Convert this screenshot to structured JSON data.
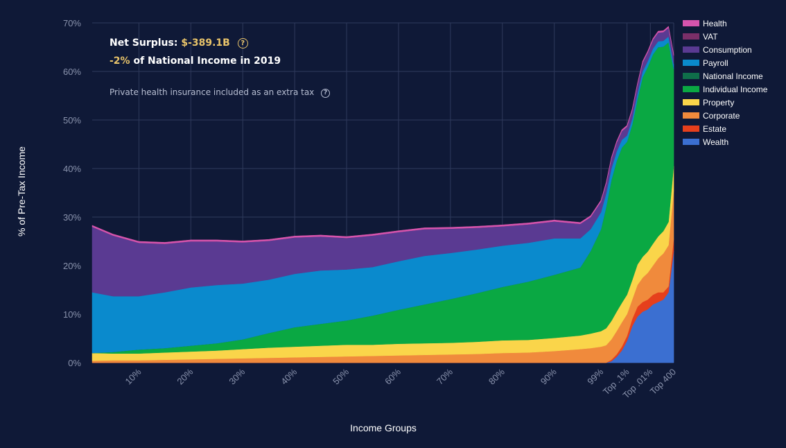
{
  "summary": {
    "surplus_label": "Net Surplus:",
    "surplus_value": "$-389.1B",
    "pct_value": "-2%",
    "pct_suffix": "of National Income in 2019",
    "note": "Private health insurance included as an extra tax",
    "help_glyph": "?"
  },
  "chart_data": {
    "type": "area",
    "stacked": true,
    "xlabel": "Income Groups",
    "ylabel": "% of Pre-Tax Income",
    "ylim": [
      0,
      70
    ],
    "y_ticks": [
      "0%",
      "10%",
      "20%",
      "30%",
      "40%",
      "50%",
      "60%",
      "70%"
    ],
    "x_ticks": [
      "10%",
      "20%",
      "30%",
      "40%",
      "50%",
      "60%",
      "70%",
      "80%",
      "90%",
      "99%",
      "Top .1%",
      "Top .01%",
      "Top 400"
    ],
    "x_tick_positions": [
      10,
      20,
      30,
      40,
      50,
      60,
      70,
      80,
      90,
      99,
      104,
      108.5,
      113
    ],
    "x_domain": [
      1,
      113
    ],
    "x": [
      1,
      5,
      10,
      15,
      20,
      25,
      30,
      35,
      40,
      45,
      50,
      55,
      60,
      65,
      70,
      75,
      80,
      85,
      90,
      95,
      97,
      99,
      100,
      101,
      102,
      103,
      104,
      105,
      106,
      107,
      108,
      109,
      110,
      111,
      112,
      113
    ],
    "grid": true,
    "legend_position": "right",
    "series": [
      {
        "name": "Wealth",
        "color": "#3b6fd1",
        "values": [
          0,
          0,
          0,
          0,
          0,
          0,
          0,
          0,
          0,
          0,
          0,
          0,
          0,
          0,
          0,
          0,
          0,
          0,
          0,
          0,
          0,
          0,
          0,
          0.3,
          1.2,
          2.5,
          4.5,
          7.5,
          9.5,
          10.5,
          11,
          12,
          12.5,
          13,
          14.5,
          23
        ]
      },
      {
        "name": "Estate",
        "color": "#e63f1c",
        "values": [
          0,
          0,
          0,
          0,
          0,
          0,
          0,
          0,
          0,
          0,
          0,
          0,
          0,
          0,
          0,
          0,
          0,
          0,
          0,
          0,
          0,
          0,
          0,
          0.3,
          0.5,
          0.8,
          1,
          1.5,
          2,
          2,
          2,
          2,
          2,
          1.5,
          1.2,
          2.5
        ]
      },
      {
        "name": "Corporate",
        "color": "#f08a3c",
        "values": [
          0.4,
          0.5,
          0.5,
          0.6,
          0.7,
          0.8,
          0.9,
          1.0,
          1.1,
          1.2,
          1.3,
          1.4,
          1.5,
          1.6,
          1.7,
          1.8,
          2.0,
          2.1,
          2.4,
          2.8,
          3,
          3.3,
          3.6,
          4.2,
          4.8,
          5,
          4.5,
          4,
          4.5,
          5,
          5.5,
          6,
          7,
          8,
          8.5,
          10
        ]
      },
      {
        "name": "Property",
        "color": "#fad54a",
        "values": [
          1.6,
          1.4,
          1.4,
          1.5,
          1.6,
          1.7,
          1.9,
          2.1,
          2.2,
          2.3,
          2.4,
          2.3,
          2.4,
          2.4,
          2.4,
          2.5,
          2.6,
          2.6,
          2.7,
          2.8,
          3,
          3.2,
          3.5,
          3.8,
          4.0,
          4.0,
          4.0,
          4.0,
          4.2,
          4.3,
          4.4,
          4.5,
          4.5,
          4.6,
          4.8,
          5
        ]
      },
      {
        "name": "Individual Income",
        "color": "#0aa843",
        "values": [
          0,
          0.3,
          0.8,
          0.9,
          1.2,
          1.5,
          2,
          3,
          4,
          4.5,
          5,
          6,
          7,
          8,
          9,
          10,
          11,
          12,
          13,
          14,
          17,
          21,
          25,
          29,
          31,
          32,
          31.5,
          32,
          34,
          37,
          38,
          39,
          39,
          38,
          37,
          20
        ]
      },
      {
        "name": "National Income",
        "color": "#0f6e4a",
        "values": [
          0,
          0,
          0,
          0,
          0,
          0,
          0,
          0,
          0,
          0,
          0,
          0,
          0,
          0,
          0,
          0,
          0,
          0,
          0,
          0,
          0,
          0,
          0,
          0,
          0,
          0,
          0,
          0,
          0,
          0,
          0,
          0,
          0,
          0,
          0,
          0
        ]
      },
      {
        "name": "Payroll",
        "color": "#0a8acd",
        "values": [
          12.5,
          11.5,
          11,
          11.5,
          12,
          12,
          11.5,
          11,
          11,
          11,
          10.5,
          10,
          10,
          10,
          9.5,
          9,
          8.5,
          8,
          7.5,
          6,
          4.5,
          3.5,
          2.8,
          2.4,
          2.0,
          1.6,
          1.3,
          1.2,
          1.2,
          1.2,
          1.2,
          1.2,
          1.2,
          1.2,
          1.2,
          1.0
        ]
      },
      {
        "name": "Consumption",
        "color": "#5a3a92",
        "values": [
          13.5,
          12.5,
          11,
          10,
          9.5,
          9,
          8.5,
          8,
          7.5,
          7,
          6.5,
          6.5,
          6,
          5.5,
          5,
          4.5,
          4,
          3.8,
          3.5,
          3,
          2.5,
          2.2,
          2,
          2,
          1.8,
          1.8,
          1.8,
          1.8,
          1.8,
          1.8,
          1.8,
          1.8,
          1.8,
          1.8,
          1.8,
          1.8
        ]
      },
      {
        "name": "VAT",
        "color": "#7a2f68",
        "values": [
          0,
          0,
          0,
          0,
          0,
          0,
          0,
          0,
          0,
          0,
          0,
          0,
          0,
          0,
          0,
          0,
          0,
          0,
          0,
          0,
          0,
          0,
          0,
          0,
          0,
          0,
          0,
          0,
          0,
          0,
          0,
          0,
          0,
          0,
          0,
          0
        ]
      },
      {
        "name": "Health",
        "color": "#d654ad",
        "values": [
          0.3,
          0.3,
          0.3,
          0.3,
          0.3,
          0.3,
          0.3,
          0.3,
          0.3,
          0.3,
          0.3,
          0.3,
          0.3,
          0.3,
          0.3,
          0.3,
          0.3,
          0.3,
          0.3,
          0.3,
          0.3,
          0.3,
          0.3,
          0.3,
          0.3,
          0.3,
          0.3,
          0.3,
          0.3,
          0.3,
          0.3,
          0.3,
          0.3,
          0.3,
          0.3,
          0.3
        ]
      }
    ]
  }
}
